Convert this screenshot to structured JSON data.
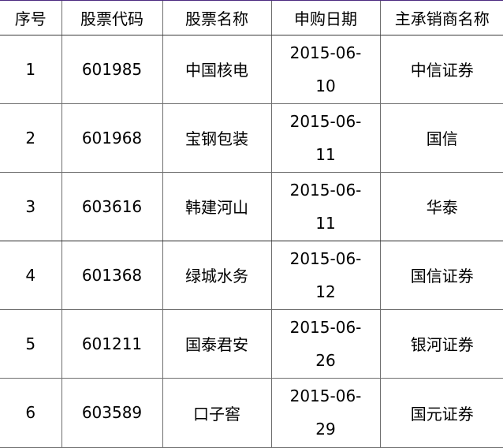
{
  "table": {
    "headers": [
      "序号",
      "股票代码",
      "股票名称",
      "申购日期",
      "主承销商名称"
    ],
    "rows": [
      {
        "no": "1",
        "code": "601985",
        "name": "中国核电",
        "date_line1": "2015-06-",
        "date_line2": "10",
        "underwriter": "中信证券"
      },
      {
        "no": "2",
        "code": "601968",
        "name": "宝钢包装",
        "date_line1": "2015-06-",
        "date_line2": "11",
        "underwriter": "国信"
      },
      {
        "no": "3",
        "code": "603616",
        "name": "韩建河山",
        "date_line1": "2015-06-",
        "date_line2": "11",
        "underwriter": "华泰"
      },
      {
        "no": "4",
        "code": "601368",
        "name": "绿城水务",
        "date_line1": "2015-06-",
        "date_line2": "12",
        "underwriter": "国信证券"
      },
      {
        "no": "5",
        "code": "601211",
        "name": "国泰君安",
        "date_line1": "2015-06-",
        "date_line2": "26",
        "underwriter": "银河证券"
      },
      {
        "no": "6",
        "code": "603589",
        "name": "口子窖",
        "date_line1": "2015-06-",
        "date_line2": "29",
        "underwriter": "国元证券"
      }
    ]
  },
  "colors": {
    "top_border": "#4b2a80",
    "grid": "#6e6e6e",
    "text": "#000000"
  }
}
